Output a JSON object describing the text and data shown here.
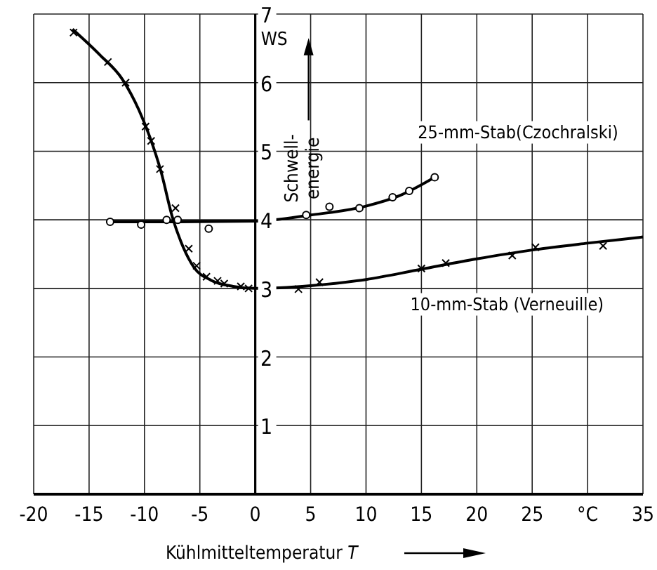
{
  "chart_data": {
    "type": "line",
    "xlabel": "Kühlmitteltemperatur T",
    "ylabel": "Schwell- energie",
    "annotations": [
      "WS"
    ],
    "xlim": [
      -20,
      35
    ],
    "xticks": [
      -20,
      -15,
      -10,
      -5,
      0,
      5,
      10,
      15,
      20,
      25,
      {
        "value": 30,
        "label": "°C"
      },
      35
    ],
    "ylim": [
      0,
      7
    ],
    "yticks": [
      {
        "value": 0,
        "label": null
      },
      1,
      2,
      3,
      4,
      5,
      6,
      7
    ],
    "grid": true,
    "series": [
      {
        "type": "line",
        "name": "25-mm-Stab(Czochralski)",
        "color": "#000000",
        "marker": "none",
        "x": [
          -13.1,
          -8,
          0,
          5,
          10,
          13,
          16.2
        ],
        "values": [
          3.97,
          3.97,
          3.98,
          4.07,
          4.2,
          4.35,
          4.62
        ]
      },
      {
        "type": "scatter",
        "color": "#000000",
        "marker": "circle",
        "x": [
          -13.1,
          -10.3,
          -8,
          -7,
          -4.2,
          4.6,
          6.7,
          9.4,
          12.4,
          13.9,
          16.2
        ],
        "values": [
          3.97,
          3.93,
          4.0,
          4.0,
          3.87,
          4.07,
          4.19,
          4.17,
          4.33,
          4.42,
          4.62
        ]
      },
      {
        "type": "line",
        "name": "10-mm-Stab (Verneuille)",
        "color": "#000000",
        "marker": "none",
        "x": [
          -16.5,
          -14,
          -12,
          -10.5,
          -9.5,
          -8.5,
          -7.5,
          -6.5,
          -5.5,
          -4,
          -2,
          0,
          5,
          10,
          15,
          20,
          25,
          30,
          35
        ],
        "values": [
          6.78,
          6.4,
          6.05,
          5.6,
          5.2,
          4.7,
          4.05,
          3.6,
          3.3,
          3.12,
          3.03,
          3.0,
          3.04,
          3.13,
          3.28,
          3.43,
          3.56,
          3.66,
          3.75
        ]
      },
      {
        "type": "scatter",
        "color": "#000000",
        "marker": "cross",
        "x": [
          -16.4,
          -13.3,
          -11.7,
          -9.9,
          -9.4,
          -8.6,
          -7.2,
          -6,
          -5.3,
          -4.4,
          -3.4,
          -2.8,
          -1.3,
          -0.6,
          3.9,
          5.8,
          15,
          17.2,
          23.2,
          25.3,
          31.4
        ],
        "values": [
          6.73,
          6.3,
          6.0,
          5.36,
          5.15,
          4.74,
          4.17,
          3.58,
          3.33,
          3.17,
          3.11,
          3.07,
          3.03,
          3.0,
          2.99,
          3.09,
          3.29,
          3.37,
          3.48,
          3.6,
          3.62
        ]
      }
    ]
  }
}
